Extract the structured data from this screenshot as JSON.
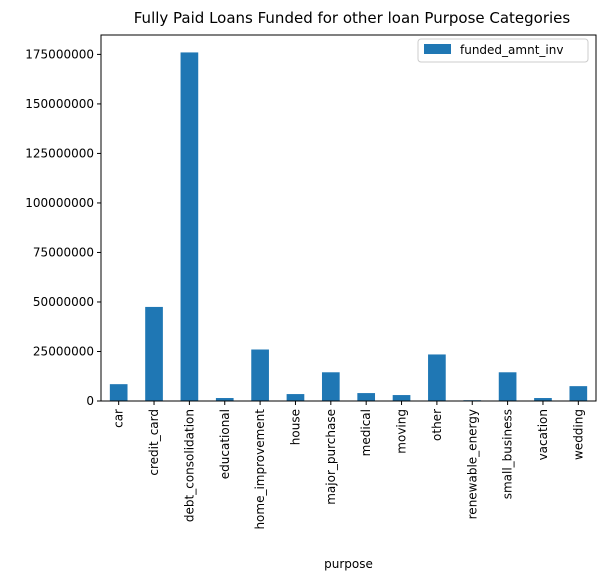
{
  "chart_data": {
    "type": "bar",
    "title": "Fully Paid Loans Funded for other loan Purpose Categories",
    "xlabel": "purpose",
    "ylabel": "",
    "categories": [
      "car",
      "credit_card",
      "debt_consolidation",
      "educational",
      "home_improvement",
      "house",
      "major_purchase",
      "medical",
      "moving",
      "other",
      "renewable_energy",
      "small_business",
      "vacation",
      "wedding"
    ],
    "series": [
      {
        "name": "funded_amnt_inv",
        "color": "#1f77b4",
        "values": [
          8500000,
          47500000,
          176000000,
          1500000,
          26000000,
          3500000,
          14500000,
          4000000,
          3000000,
          23500000,
          400000,
          14500000,
          1500000,
          7500000
        ]
      }
    ],
    "ylim": [
      0,
      184800000
    ],
    "yticks": [
      0,
      25000000,
      50000000,
      75000000,
      100000000,
      125000000,
      150000000,
      175000000
    ],
    "grid": false,
    "legend_position": "top-right"
  }
}
